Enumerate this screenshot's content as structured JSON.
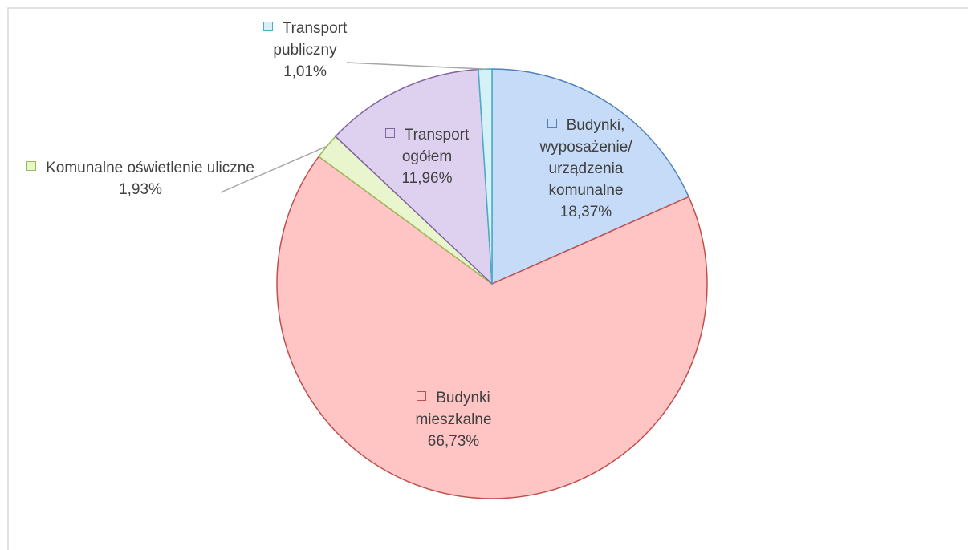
{
  "chart_data": {
    "type": "pie",
    "categories": [
      "Budynki, wyposażenie/ urządzenia komunalne",
      "Budynki mieszkalne",
      "Komunalne oświetlenie uliczne",
      "Transport ogółem",
      "Transport publiczny"
    ],
    "values": [
      18.37,
      66.73,
      1.93,
      11.96,
      1.01
    ],
    "value_labels": [
      "18,37%",
      "66,73%",
      "1,93%",
      "11,96%",
      "1,01%"
    ],
    "colors": [
      "#4f81bd",
      "#c0504d",
      "#9bbb59",
      "#8064a2",
      "#4bacc6"
    ],
    "fills": [
      "#c6dbf7",
      "#ffc4c4",
      "#e8f5cd",
      "#ddd1ef",
      "#d4f1f8"
    ]
  }
}
